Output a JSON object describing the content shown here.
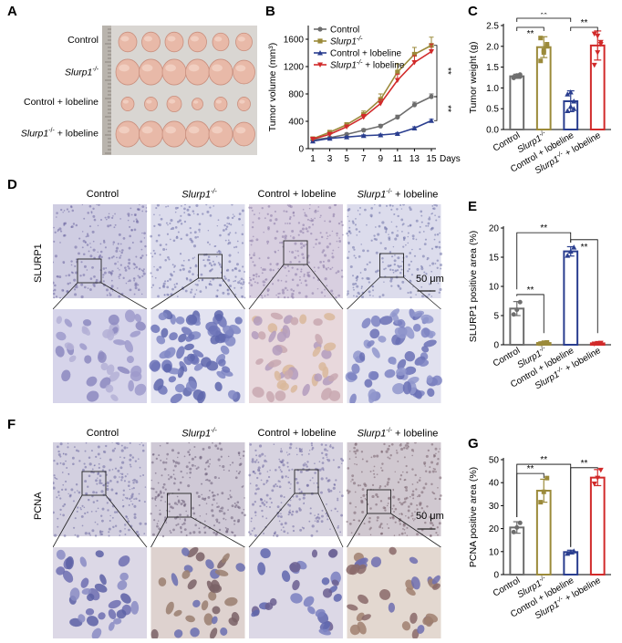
{
  "panels": {
    "A": "A",
    "B": "B",
    "C": "C",
    "D": "D",
    "E": "E",
    "F": "F",
    "G": "G"
  },
  "groups": {
    "control": "Control",
    "slurp1_gene": "Slurp1",
    "slurp1_sup": "-/-",
    "control_lobeline": "Control + lobeline",
    "plus_lobeline": " + lobeline"
  },
  "panel_d": {
    "stain": "SLURP1",
    "scale": "50 μm"
  },
  "panel_f": {
    "stain": "PCNA",
    "scale": "50 μm"
  },
  "chart_data": [
    {
      "panel": "B",
      "type": "line",
      "ylabel": "Tumor volume (mm³)",
      "xunit": "Days",
      "x": [
        1,
        3,
        5,
        7,
        9,
        11,
        13,
        15
      ],
      "xticks": [
        1,
        3,
        5,
        7,
        9,
        11,
        13,
        15
      ],
      "yticks": [
        0,
        400,
        800,
        1200,
        1600
      ],
      "ylim": [
        0,
        1800
      ],
      "significance": [
        "**",
        "**"
      ],
      "series": [
        {
          "name": "Control",
          "color": "#6e6e6e",
          "marker": "circle",
          "values": [
            130,
            160,
            210,
            270,
            330,
            460,
            640,
            760
          ],
          "err": [
            10,
            12,
            15,
            20,
            25,
            30,
            40,
            40
          ]
        },
        {
          "name": "Slurp1-/-",
          "color": "#9b8a3a",
          "marker": "square",
          "values": [
            145,
            240,
            350,
            500,
            720,
            1120,
            1380,
            1510
          ],
          "err": [
            10,
            20,
            30,
            50,
            80,
            120,
            100,
            120
          ]
        },
        {
          "name": "Control + lobeline",
          "color": "#2a3e8f",
          "marker": "triangle",
          "values": [
            110,
            150,
            170,
            190,
            200,
            220,
            300,
            410
          ],
          "err": [
            8,
            10,
            10,
            12,
            12,
            15,
            20,
            20
          ]
        },
        {
          "name": "Slurp1-/- + lobeline",
          "color": "#d12a2a",
          "marker": "triangle-down",
          "values": [
            140,
            210,
            320,
            460,
            660,
            1000,
            1260,
            1420
          ],
          "err": [
            10,
            15,
            25,
            40,
            60,
            90,
            100,
            110
          ]
        }
      ],
      "legend": "top-left"
    },
    {
      "panel": "C",
      "type": "bar",
      "ylabel": "Tumor weight (g)",
      "categories": [
        "Control",
        "Slurp1-/-",
        "Control + lobeline",
        "Slurp1-/- + lobeline"
      ],
      "values": [
        1.28,
        1.98,
        0.68,
        2.02
      ],
      "err": [
        0.05,
        0.25,
        0.25,
        0.35
      ],
      "points": [
        [
          1.24,
          1.28,
          1.32,
          1.26,
          1.3,
          1.27
        ],
        [
          1.65,
          1.85,
          2.05,
          2.2,
          1.9,
          2.0
        ],
        [
          0.45,
          0.55,
          0.68,
          0.85,
          0.9,
          0.5
        ],
        [
          1.55,
          1.85,
          2.05,
          2.3,
          2.25,
          2.1
        ]
      ],
      "colors": [
        "#6e6e6e",
        "#9b8a3a",
        "#2a3e8f",
        "#d12a2a"
      ],
      "ylim": [
        0,
        2.5
      ],
      "yticks": [
        0,
        0.5,
        1.0,
        1.5,
        2.0,
        2.5
      ],
      "significance": [
        "**",
        "**",
        "**"
      ]
    },
    {
      "panel": "E",
      "type": "bar",
      "ylabel": "SLURP1 positive area (%)",
      "categories": [
        "Control",
        "Slurp1-/-",
        "Control + lobeline",
        "Slurp1-/- + lobeline"
      ],
      "values": [
        6.2,
        0.3,
        16.0,
        0.25
      ],
      "err": [
        1.2,
        0.2,
        0.8,
        0.15
      ],
      "points": [
        [
          5.2,
          6.0,
          7.3
        ],
        [
          0.2,
          0.35,
          0.4
        ],
        [
          15.3,
          16.0,
          16.7
        ],
        [
          0.15,
          0.25,
          0.3
        ]
      ],
      "colors": [
        "#6e6e6e",
        "#9b8a3a",
        "#2a3e8f",
        "#d12a2a"
      ],
      "ylim": [
        0,
        20
      ],
      "yticks": [
        0,
        5,
        10,
        15,
        20
      ],
      "significance": [
        "**",
        "**",
        "**"
      ]
    },
    {
      "panel": "G",
      "type": "bar",
      "ylabel": "PCNA positive area (%)",
      "categories": [
        "Control",
        "Slurp1-/-",
        "Control + lobeline",
        "Slurp1-/- + lobeline"
      ],
      "values": [
        20.5,
        36.5,
        9.8,
        42.2
      ],
      "err": [
        2.5,
        5.0,
        0.8,
        3.5
      ],
      "points": [
        [
          18.5,
          20.5,
          22.5
        ],
        [
          31.5,
          36.0,
          42.0
        ],
        [
          9.2,
          9.8,
          10.2
        ],
        [
          39.5,
          42.0,
          45.5
        ]
      ],
      "colors": [
        "#6e6e6e",
        "#9b8a3a",
        "#2a3e8f",
        "#d12a2a"
      ],
      "ylim": [
        0,
        50
      ],
      "yticks": [
        0,
        10,
        20,
        30,
        40,
        50
      ],
      "significance": [
        "**",
        "**",
        "**"
      ]
    }
  ]
}
